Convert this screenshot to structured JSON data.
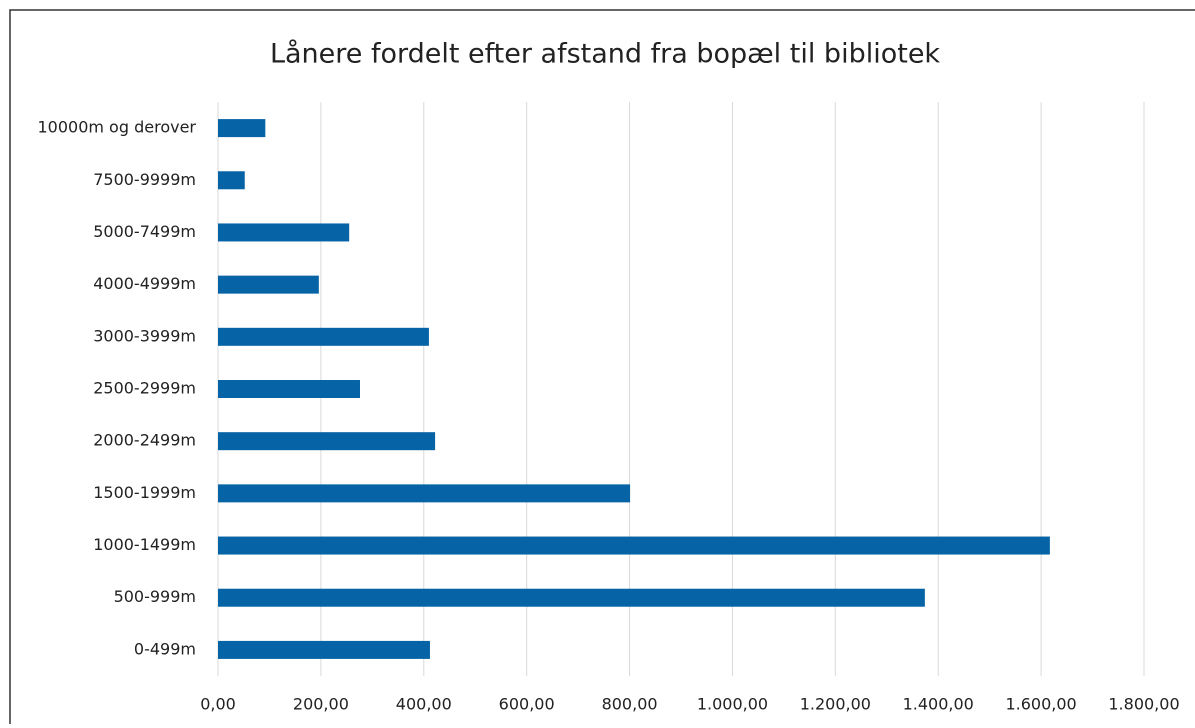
{
  "chart_data": {
    "type": "bar",
    "orientation": "horizontal",
    "title": "Lånere fordelt efter afstand fra bopæl til bibliotek",
    "categories": [
      "0-499m",
      "500-999m",
      "1000-1499m",
      "1500-1999m",
      "2000-2499m",
      "2500-2999m",
      "3000-3999m",
      "4000-4999m",
      "5000-7499m",
      "7500-9999m",
      "10000m og derover"
    ],
    "values": [
      412,
      1374,
      1617,
      801,
      422,
      276,
      410,
      196,
      255,
      52,
      92
    ],
    "color": "#0563a6",
    "xlim": [
      0,
      1800
    ],
    "xticks": [
      {
        "value": 0,
        "label": "0,00"
      },
      {
        "value": 200,
        "label": "200,00"
      },
      {
        "value": 400,
        "label": "400,00"
      },
      {
        "value": 600,
        "label": "600,00"
      },
      {
        "value": 800,
        "label": "800,00"
      },
      {
        "value": 1000,
        "label": "1.000,00"
      },
      {
        "value": 1200,
        "label": "1.200,00"
      },
      {
        "value": 1400,
        "label": "1.400,00"
      },
      {
        "value": 1600,
        "label": "1.600,00"
      },
      {
        "value": 1800,
        "label": "1.800,00"
      }
    ],
    "grid": true
  }
}
